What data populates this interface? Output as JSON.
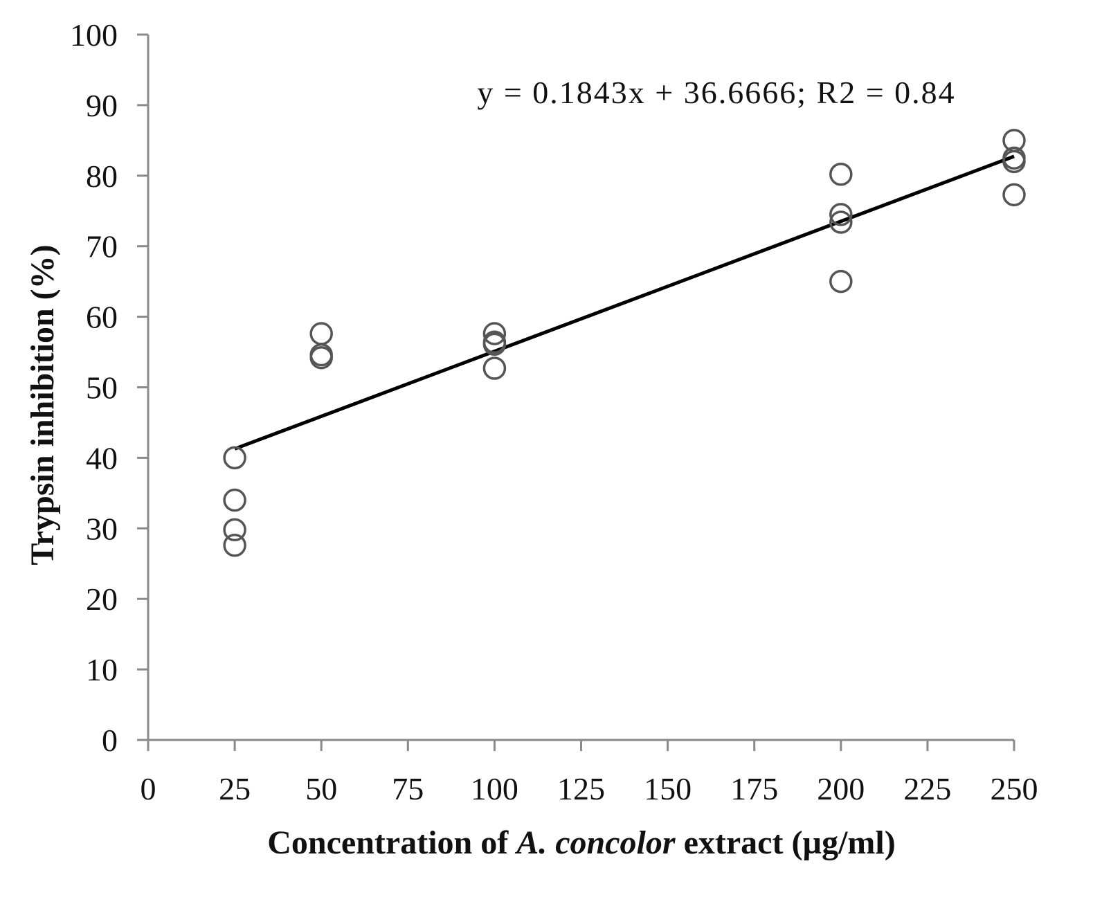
{
  "chart_data": {
    "type": "scatter",
    "xlabel_parts": [
      {
        "text": "Concentration of ",
        "italic": false
      },
      {
        "text": "A. concolor",
        "italic": true
      },
      {
        "text": " extract (µg/ml)",
        "italic": false
      }
    ],
    "ylabel": "Trypsin inhibition (%)",
    "xlim": [
      0,
      250
    ],
    "ylim": [
      0,
      100
    ],
    "x_ticks": [
      "0",
      "25",
      "50",
      "75",
      "100",
      "125",
      "150",
      "175",
      "200",
      "225",
      "250"
    ],
    "y_ticks": [
      "0",
      "10",
      "20",
      "30",
      "40",
      "50",
      "60",
      "70",
      "80",
      "90",
      "100"
    ],
    "grid": false,
    "series": [
      {
        "marker": "open-circle",
        "color": "#555555",
        "points": [
          {
            "x": 25,
            "y": 40.0
          },
          {
            "x": 25,
            "y": 34.0
          },
          {
            "x": 25,
            "y": 29.8
          },
          {
            "x": 25,
            "y": 27.6
          },
          {
            "x": 50,
            "y": 57.6
          },
          {
            "x": 50,
            "y": 54.2
          },
          {
            "x": 50,
            "y": 54.6
          },
          {
            "x": 100,
            "y": 57.6
          },
          {
            "x": 100,
            "y": 56.4
          },
          {
            "x": 100,
            "y": 56.1
          },
          {
            "x": 100,
            "y": 52.7
          },
          {
            "x": 200,
            "y": 80.2
          },
          {
            "x": 200,
            "y": 74.5
          },
          {
            "x": 200,
            "y": 73.4
          },
          {
            "x": 200,
            "y": 65.0
          },
          {
            "x": 250,
            "y": 85.0
          },
          {
            "x": 250,
            "y": 82.5
          },
          {
            "x": 250,
            "y": 82.0
          },
          {
            "x": 250,
            "y": 77.3
          }
        ]
      }
    ],
    "trendline": {
      "slope": 0.1843,
      "intercept": 36.6666,
      "x_range": [
        25,
        250
      ],
      "color": "#000000",
      "equation_text": "y = 0.1843x + 36.6666; R2 = 0.84"
    }
  }
}
